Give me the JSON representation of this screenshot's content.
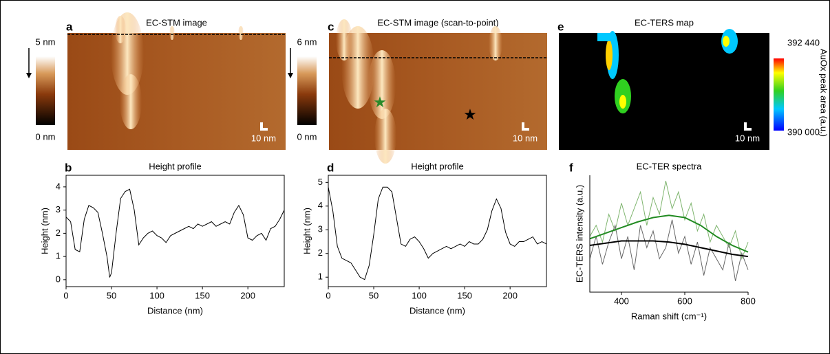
{
  "chart_data": [
    {
      "type": "image",
      "panel_label": "a",
      "title": "EC-STM image",
      "colorbar_labels": [
        "5 nm",
        "0 nm"
      ],
      "scale_label": "10 nm"
    },
    {
      "type": "line",
      "panel_label": "b",
      "title": "Height profile",
      "xlabel": "Distance (nm)",
      "ylabel": "Height (nm)",
      "xlim": [
        0,
        240
      ],
      "xticks": [
        0,
        50,
        100,
        150,
        200
      ],
      "ylim": [
        -0.3,
        4.5
      ],
      "yticks": [
        0,
        1,
        2,
        3,
        4
      ],
      "series": [
        {
          "color": "#000000",
          "x": [
            0,
            5,
            10,
            15,
            20,
            25,
            30,
            35,
            40,
            45,
            48,
            50,
            55,
            60,
            65,
            70,
            75,
            80,
            85,
            90,
            95,
            100,
            105,
            110,
            115,
            120,
            125,
            130,
            135,
            140,
            145,
            150,
            155,
            160,
            165,
            170,
            175,
            180,
            185,
            190,
            195,
            200,
            205,
            210,
            215,
            220,
            225,
            230,
            235,
            240
          ],
          "values": [
            2.7,
            2.5,
            1.3,
            1.2,
            2.6,
            3.2,
            3.1,
            2.9,
            2.0,
            1.0,
            0.1,
            0.3,
            2.0,
            3.5,
            3.8,
            3.9,
            3.0,
            1.5,
            1.8,
            2.0,
            2.1,
            1.9,
            1.8,
            1.6,
            1.9,
            2.0,
            2.1,
            2.2,
            2.3,
            2.2,
            2.4,
            2.3,
            2.4,
            2.5,
            2.3,
            2.4,
            2.5,
            2.4,
            2.9,
            3.2,
            2.8,
            1.8,
            1.7,
            1.9,
            2.0,
            1.7,
            2.2,
            2.3,
            2.6,
            3.0
          ]
        }
      ]
    },
    {
      "type": "image",
      "panel_label": "c",
      "title": "EC-STM image (scan-to-point)",
      "colorbar_labels": [
        "6 nm",
        "0 nm"
      ],
      "scale_label": "10 nm"
    },
    {
      "type": "line",
      "panel_label": "d",
      "title": "Height profile",
      "xlabel": "Distance (nm)",
      "ylabel": "Height (nm)",
      "xlim": [
        0,
        240
      ],
      "xticks": [
        0,
        50,
        100,
        150,
        200
      ],
      "ylim": [
        0.6,
        5.3
      ],
      "yticks": [
        1,
        2,
        3,
        4,
        5
      ],
      "series": [
        {
          "color": "#000000",
          "x": [
            0,
            5,
            10,
            15,
            20,
            25,
            30,
            35,
            40,
            45,
            50,
            55,
            60,
            65,
            70,
            75,
            80,
            85,
            90,
            95,
            100,
            105,
            110,
            115,
            120,
            125,
            130,
            135,
            140,
            145,
            150,
            155,
            160,
            165,
            170,
            175,
            180,
            185,
            190,
            195,
            200,
            205,
            210,
            215,
            220,
            225,
            230,
            235,
            240
          ],
          "values": [
            4.8,
            3.8,
            2.3,
            1.8,
            1.7,
            1.6,
            1.3,
            1.0,
            0.9,
            1.5,
            2.8,
            4.3,
            4.8,
            4.8,
            4.6,
            3.5,
            2.4,
            2.3,
            2.6,
            2.7,
            2.5,
            2.2,
            1.8,
            2.0,
            2.1,
            2.2,
            2.3,
            2.2,
            2.3,
            2.4,
            2.3,
            2.5,
            2.4,
            2.4,
            2.6,
            3.0,
            3.8,
            4.3,
            3.9,
            2.9,
            2.4,
            2.3,
            2.5,
            2.5,
            2.6,
            2.7,
            2.4,
            2.5,
            2.4
          ]
        }
      ]
    },
    {
      "type": "image",
      "panel_label": "e",
      "title": "EC-TERS map",
      "colorbar_labels": [
        "392 440",
        "390 000"
      ],
      "colorbar_title": "AuOx peak area (a.u.)",
      "scale_label": "10 nm"
    },
    {
      "type": "line",
      "panel_label": "f",
      "title": "EC-TER spectra",
      "xlabel": "Raman shift (cm⁻¹)",
      "ylabel": "EC-TERS intensity (a.u.)",
      "xlim": [
        300,
        800
      ],
      "xticks": [
        400,
        600,
        800
      ],
      "ylim": [
        0,
        10.5
      ],
      "series": [
        {
          "color": "#7fb56f",
          "x": [
            300,
            320,
            340,
            360,
            380,
            400,
            420,
            440,
            460,
            480,
            500,
            520,
            540,
            560,
            580,
            600,
            620,
            640,
            660,
            680,
            700,
            720,
            740,
            760,
            780,
            800
          ],
          "values": [
            5,
            6,
            4.5,
            7,
            5.5,
            8,
            6,
            7.5,
            9,
            6,
            8.5,
            7,
            10,
            7.5,
            9,
            6.5,
            8,
            5.5,
            7,
            4.5,
            6,
            5,
            4,
            5.5,
            3,
            4.5
          ]
        },
        {
          "color": "#666666",
          "x": [
            300,
            320,
            340,
            360,
            380,
            400,
            420,
            440,
            460,
            480,
            500,
            520,
            540,
            560,
            580,
            600,
            620,
            640,
            660,
            680,
            700,
            720,
            740,
            760,
            780,
            800
          ],
          "values": [
            3,
            5,
            2.5,
            4.5,
            6,
            3,
            5,
            2,
            6,
            4,
            5.5,
            3,
            4,
            6.5,
            3.5,
            5,
            2.5,
            4.5,
            1.5,
            4,
            3,
            2,
            4.5,
            1,
            3.5,
            2
          ]
        },
        {
          "color": "#228b22",
          "x": [
            300,
            350,
            400,
            450,
            500,
            550,
            600,
            650,
            700,
            750,
            800
          ],
          "values": [
            4.8,
            5.3,
            5.8,
            6.3,
            6.7,
            6.9,
            6.7,
            6.0,
            5.0,
            4.2,
            3.6
          ]
        },
        {
          "color": "#000000",
          "x": [
            300,
            350,
            400,
            450,
            500,
            550,
            600,
            650,
            700,
            750,
            800
          ],
          "values": [
            4.2,
            4.4,
            4.6,
            4.6,
            4.6,
            4.5,
            4.3,
            4.0,
            3.7,
            3.4,
            3.2
          ]
        }
      ]
    }
  ]
}
